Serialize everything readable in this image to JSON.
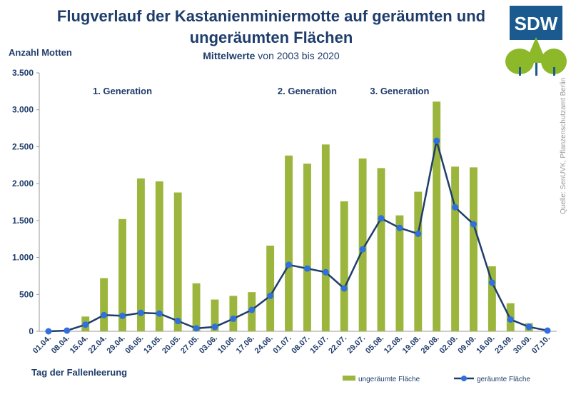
{
  "header": {
    "title_line1": "Flugverlauf der Kastanienminiermotte auf geräumten und",
    "title_line2": "ungeräumten Flächen",
    "subtitle_bold": "Mittelwerte",
    "subtitle_rest": " von 2003 bis 2020"
  },
  "logo": {
    "text": "SDW",
    "colors": {
      "blue": "#1a5a8e",
      "green": "#8cb82a"
    }
  },
  "source_note": "Quelle: SenUVK, Pflanzenschutzamt Berlin",
  "colors": {
    "bar": "#9bb53d",
    "line": "#1f3d6b",
    "marker": "#2f6fe0",
    "text": "#1f3d6b"
  },
  "chart_data": {
    "type": "bar",
    "xlabel": "Tag der Fallenleerung",
    "ylabel": "Anzahl Motten",
    "ylim": [
      0,
      3500
    ],
    "yticks": [
      0,
      500,
      1000,
      1500,
      2000,
      2500,
      3000,
      3500
    ],
    "ytick_labels": [
      "0",
      "500",
      "1.000",
      "1.500",
      "2.000",
      "2.500",
      "3.000",
      "3.500"
    ],
    "grid": false,
    "legend_position": "bottom-right",
    "categories": [
      "01.04.",
      "08.04.",
      "15.04.",
      "22.04.",
      "29.04.",
      "06.05.",
      "13.05.",
      "20.05.",
      "27.05.",
      "03.06.",
      "10.06.",
      "17.06.",
      "24.06.",
      "01.07.",
      "08.07.",
      "15.07.",
      "22.07.",
      "29.07.",
      "05.08.",
      "12.08.",
      "19.08.",
      "26.08.",
      "02.09.",
      "09.09.",
      "16.09.",
      "23.09.",
      "30.09.",
      "07.10."
    ],
    "series": [
      {
        "name": "ungeräumte Fläche",
        "kind": "bar",
        "values": [
          0,
          0,
          200,
          720,
          1520,
          2070,
          2030,
          1880,
          650,
          430,
          480,
          530,
          1160,
          2380,
          2270,
          2530,
          1760,
          2340,
          2210,
          1570,
          1890,
          3110,
          2230,
          2220,
          880,
          380,
          110,
          0
        ]
      },
      {
        "name": "geräumte Fläche",
        "kind": "line",
        "values": [
          0,
          10,
          90,
          220,
          210,
          250,
          240,
          140,
          40,
          60,
          170,
          290,
          480,
          900,
          850,
          800,
          580,
          1110,
          1530,
          1400,
          1320,
          2580,
          1680,
          1450,
          660,
          160,
          60,
          10
        ]
      }
    ],
    "annotations": [
      {
        "text": "1. Generation",
        "at_category": "29.04."
      },
      {
        "text": "2. Generation",
        "at_category": "08.07."
      },
      {
        "text": "3. Generation",
        "at_category": "12.08."
      }
    ]
  }
}
